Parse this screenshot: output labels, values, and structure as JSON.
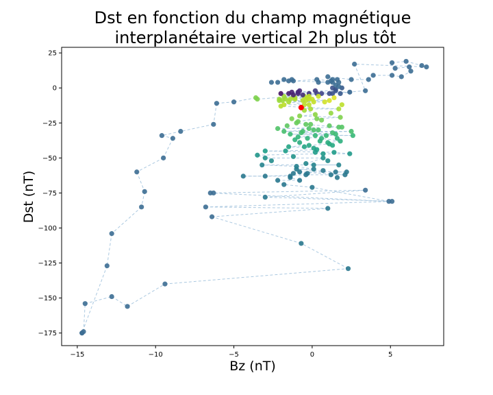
{
  "chart_data": {
    "type": "scatter",
    "title_line1": "Dst en fonction du champ magnétique",
    "title_line2": "interplanétaire vertical 2h plus tôt",
    "xlabel": "Bz (nT)",
    "ylabel": "Dst (nT)",
    "xlim": [
      -16.0,
      8.4
    ],
    "ylim": [
      -184,
      29
    ],
    "xticks": [
      -15,
      -10,
      -5,
      0,
      5
    ],
    "xtick_labels": [
      "−15",
      "−10",
      "−5",
      "0",
      "5"
    ],
    "yticks": [
      25,
      0,
      -25,
      -50,
      -75,
      -100,
      -125,
      -150,
      -175
    ],
    "ytick_labels": [
      "25",
      "0",
      "−25",
      "−50",
      "−75",
      "−100",
      "−125",
      "−150",
      "−175"
    ],
    "grid": false,
    "legend": "none",
    "colormap": "viridis",
    "line_color": "#aac8e0",
    "marker_color": "#3d6e94",
    "highlight_color": "#ff0000",
    "trajectory": [
      [
        -14.7,
        -175
      ],
      [
        -14.6,
        -174
      ],
      [
        -14.5,
        -154
      ],
      [
        -12.8,
        -149
      ],
      [
        -11.8,
        -156
      ],
      [
        -9.4,
        -140
      ],
      [
        2.3,
        -129
      ],
      [
        -0.7,
        -111
      ],
      [
        -6.4,
        -92
      ],
      [
        1.0,
        -86
      ],
      [
        -6.8,
        -85
      ],
      [
        5.1,
        -81
      ],
      [
        -3.0,
        -78
      ],
      [
        3.4,
        -73
      ],
      [
        -6.3,
        -75
      ],
      [
        -6.5,
        -75
      ],
      [
        4.9,
        -81
      ],
      [
        0.0,
        -71
      ],
      [
        -1.8,
        -69
      ],
      [
        -2.2,
        -66
      ],
      [
        -0.8,
        -66
      ],
      [
        -1.4,
        -64
      ],
      [
        -1.4,
        -63
      ],
      [
        -4.4,
        -63
      ],
      [
        -3.0,
        -63
      ],
      [
        -0.4,
        -62
      ],
      [
        1.2,
        -62
      ],
      [
        2.1,
        -62
      ],
      [
        -0.8,
        -60
      ],
      [
        2.2,
        -60
      ],
      [
        1.5,
        -60
      ],
      [
        -1.0,
        -58
      ],
      [
        0.1,
        -58
      ],
      [
        -1.0,
        -56
      ],
      [
        -3.2,
        -55
      ],
      [
        1.7,
        -55
      ],
      [
        0.1,
        -55
      ],
      [
        -0.4,
        -54
      ],
      [
        0.7,
        -50
      ],
      [
        -3.0,
        -50
      ],
      [
        -3.5,
        -48
      ],
      [
        0.7,
        -47
      ],
      [
        2.4,
        -47
      ],
      [
        1.4,
        -46
      ],
      [
        -3.0,
        -45
      ],
      [
        -1.7,
        -45
      ],
      [
        0.3,
        -44
      ],
      [
        0.1,
        -43
      ],
      [
        -1.5,
        -42
      ],
      [
        -0.2,
        -41
      ],
      [
        1.1,
        -40
      ],
      [
        1.0,
        -39
      ],
      [
        1.8,
        -38
      ],
      [
        0.6,
        -36
      ],
      [
        -0.9,
        -35
      ],
      [
        0.2,
        -34
      ],
      [
        2.6,
        -34
      ],
      [
        -1.4,
        -33
      ],
      [
        1.5,
        -33
      ],
      [
        -0.7,
        -32
      ],
      [
        2.5,
        -31
      ],
      [
        -1.8,
        -31
      ],
      [
        0.1,
        -30
      ],
      [
        -0.2,
        -29
      ],
      [
        -2.2,
        -29
      ],
      [
        1.9,
        -28
      ],
      [
        1.7,
        -28
      ],
      [
        -0.4,
        -26
      ],
      [
        -1.0,
        -25
      ],
      [
        -0.9,
        -24
      ],
      [
        0.3,
        -22
      ],
      [
        1.8,
        -21
      ],
      [
        -0.8,
        -20
      ],
      [
        0.2,
        -19
      ],
      [
        -0.7,
        -14
      ],
      [
        -0.1,
        -15
      ],
      [
        1.7,
        -15
      ],
      [
        -2.0,
        -13
      ],
      [
        -1.8,
        -12
      ],
      [
        -0.5,
        -12
      ],
      [
        -0.2,
        -12
      ],
      [
        -1.5,
        -10
      ],
      [
        0.8,
        -10
      ],
      [
        -2.1,
        -9
      ],
      [
        -1.9,
        -9
      ],
      [
        -0.6,
        -9
      ],
      [
        -0.4,
        -9
      ],
      [
        1.1,
        -9
      ],
      [
        -0.2,
        -8
      ],
      [
        0.0,
        -8
      ],
      [
        -1.1,
        -8
      ],
      [
        -1.7,
        -8
      ],
      [
        -1.4,
        -8
      ],
      [
        -2.1,
        -8
      ],
      [
        -0.3,
        -7
      ],
      [
        -1.1,
        -7
      ],
      [
        -0.5,
        -6
      ],
      [
        -1.8,
        -6
      ],
      [
        -1.2,
        -6
      ],
      [
        -0.6,
        -5
      ],
      [
        -0.2,
        -4
      ],
      [
        0.3,
        -4
      ],
      [
        0.6,
        -4
      ],
      [
        1.1,
        -4
      ],
      [
        -2.0,
        -4
      ],
      [
        -1.5,
        -4
      ],
      [
        -1.2,
        -5
      ],
      [
        1.3,
        -4
      ],
      [
        1.8,
        -4
      ],
      [
        2.4,
        -3
      ],
      [
        -1.3,
        -3
      ],
      [
        -0.9,
        -3
      ],
      [
        0.2,
        -2
      ],
      [
        1.5,
        -2
      ],
      [
        1.5,
        -1
      ],
      [
        1.3,
        0
      ],
      [
        1.9,
        0
      ],
      [
        1.7,
        1
      ],
      [
        1.5,
        2
      ],
      [
        1.3,
        4
      ],
      [
        1.0,
        4
      ],
      [
        0.4,
        4
      ],
      [
        1.7,
        4
      ],
      [
        -1.5,
        5
      ],
      [
        -2.6,
        4
      ],
      [
        -2.2,
        4
      ],
      [
        -1.8,
        6
      ],
      [
        -1.3,
        6
      ],
      [
        -1.2,
        5
      ],
      [
        0.3,
        6
      ],
      [
        1.2,
        5
      ],
      [
        1.3,
        6
      ],
      [
        1.6,
        6
      ],
      [
        1.0,
        8
      ],
      [
        2.5,
        6
      ],
      [
        3.6,
        6
      ],
      [
        3.9,
        9
      ],
      [
        5.1,
        9
      ],
      [
        5.7,
        8
      ],
      [
        6.3,
        12
      ],
      [
        6.2,
        15
      ],
      [
        5.3,
        14
      ],
      [
        5.1,
        18
      ],
      [
        6.0,
        19
      ],
      [
        7.0,
        16
      ],
      [
        7.3,
        15
      ],
      [
        2.7,
        17
      ],
      [
        3.4,
        -2
      ],
      [
        -3.5,
        -8
      ],
      [
        -3.6,
        -7
      ],
      [
        -5.0,
        -10
      ],
      [
        -6.1,
        -11
      ],
      [
        -6.3,
        -26
      ],
      [
        -8.4,
        -31
      ],
      [
        -9.6,
        -34
      ],
      [
        -8.9,
        -36
      ],
      [
        -9.5,
        -50
      ],
      [
        -11.2,
        -60
      ],
      [
        -10.7,
        -74
      ],
      [
        -10.9,
        -85
      ],
      [
        -12.8,
        -104
      ],
      [
        -13.1,
        -127
      ],
      [
        -14.7,
        -175
      ]
    ],
    "extra_points": [
      [
        -0.8,
        -2
      ],
      [
        -0.2,
        -6
      ],
      [
        1.4,
        -7
      ],
      [
        0.4,
        -6
      ],
      [
        -0.9,
        -4
      ],
      [
        0.1,
        -10
      ],
      [
        1.9,
        -12
      ],
      [
        -0.5,
        -16
      ],
      [
        1.2,
        -18
      ],
      [
        -1.3,
        -22
      ],
      [
        0.6,
        -23
      ],
      [
        -0.1,
        -26
      ],
      [
        1.1,
        -27
      ],
      [
        -1.6,
        -27
      ],
      [
        0.4,
        -30
      ],
      [
        -0.6,
        -31
      ],
      [
        1.3,
        -32
      ],
      [
        0.9,
        -34
      ],
      [
        -0.3,
        -36
      ],
      [
        1.6,
        -36
      ],
      [
        -1.1,
        -37
      ],
      [
        0.5,
        -38
      ],
      [
        -0.8,
        -39
      ],
      [
        1.3,
        -41
      ],
      [
        -0.5,
        -42
      ],
      [
        0.2,
        -46
      ],
      [
        -1.2,
        -49
      ],
      [
        1.0,
        -52
      ],
      [
        -2.6,
        -52
      ],
      [
        0.7,
        -59
      ],
      [
        -1.2,
        -61
      ],
      [
        -0.3,
        -61
      ],
      [
        1.6,
        -64
      ]
    ],
    "highlight_point": [
      -0.7,
      -14
    ]
  }
}
